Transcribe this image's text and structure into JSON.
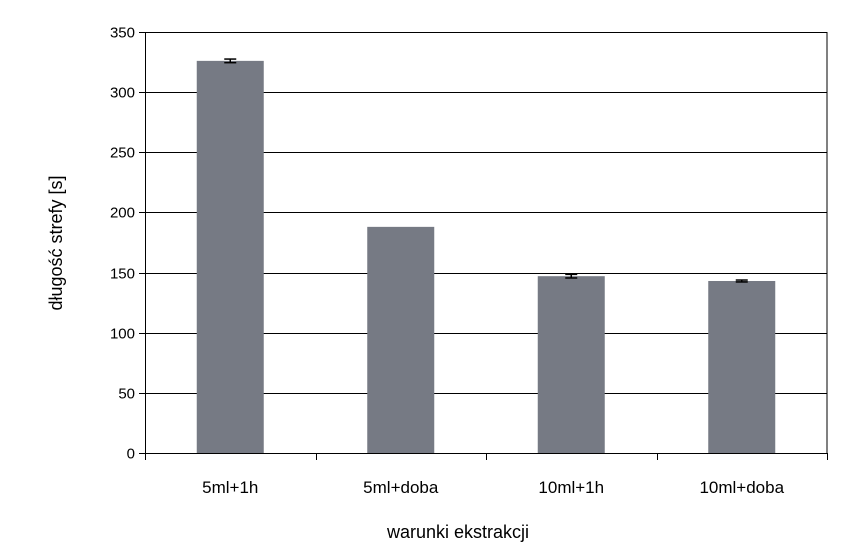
{
  "chart_data": {
    "type": "bar",
    "title": "",
    "xlabel": "warunki ekstrakcji",
    "ylabel": "długość strefy [s]",
    "categories": [
      "5ml+1h",
      "5ml+doba",
      "10ml+1h",
      "10ml+doba"
    ],
    "values": [
      326,
      188,
      147,
      143
    ],
    "errors": [
      1.5,
      0,
      1.5,
      0.8
    ],
    "ylim": [
      0,
      350
    ],
    "yticks": [
      "0",
      "50",
      "100",
      "150",
      "200",
      "250",
      "300",
      "350"
    ],
    "grid": true,
    "legend": "none",
    "bar_color": "#767a84",
    "grid_color": "#000000"
  }
}
